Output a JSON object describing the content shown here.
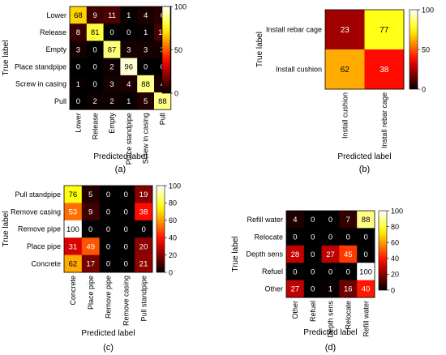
{
  "chart_data": [
    {
      "type": "heatmap",
      "panel_label": "(a)",
      "xlabel": "Predicted label",
      "ylabel": "True label",
      "rows": [
        "Lower",
        "Release",
        "Empty",
        "Place standpipe",
        "Screw in casing",
        "Pull"
      ],
      "cols": [
        "Lower",
        "Release",
        "Empty",
        "Place standpipe",
        "Screw in casing",
        "Pull"
      ],
      "values": [
        [
          68,
          9,
          11,
          1,
          4,
          6
        ],
        [
          8,
          81,
          0,
          0,
          1,
          10
        ],
        [
          3,
          0,
          87,
          3,
          3,
          3
        ],
        [
          0,
          0,
          2,
          96,
          0,
          0
        ],
        [
          1,
          0,
          3,
          4,
          88,
          4
        ],
        [
          0,
          2,
          2,
          1,
          5,
          88
        ]
      ],
      "colorbar": {
        "range": [
          0,
          100
        ],
        "ticks": [
          "0",
          "50",
          "100"
        ]
      },
      "colormap": "hot",
      "legend_position": "right"
    },
    {
      "type": "heatmap",
      "panel_label": "(b)",
      "xlabel": "Predicted label",
      "ylabel": "True label",
      "rows": [
        "Install rebar cage",
        "Install cushion"
      ],
      "cols": [
        "Install cushion",
        "Install rebar cage"
      ],
      "values": [
        [
          23,
          77
        ],
        [
          62,
          38
        ]
      ],
      "colorbar": {
        "range": [
          0,
          100
        ],
        "ticks": [
          "0",
          "50",
          "100"
        ]
      },
      "colormap": "hot",
      "legend_position": "right"
    },
    {
      "type": "heatmap",
      "panel_label": "(c)",
      "xlabel": "Predicted label",
      "ylabel": "True label",
      "rows": [
        "Pull standpipe",
        "Remove casing",
        "Remove pipe",
        "Place pipe",
        "Concrete"
      ],
      "cols": [
        "Concrete",
        "Place pipe",
        "Remove pipe",
        "Remove casing",
        "Pull standpipe"
      ],
      "values": [
        [
          76,
          5,
          0,
          0,
          19
        ],
        [
          53,
          9,
          0,
          0,
          38
        ],
        [
          100,
          0,
          0,
          0,
          0
        ],
        [
          31,
          49,
          0,
          0,
          20
        ],
        [
          62,
          17,
          0,
          0,
          21
        ]
      ],
      "colorbar": {
        "range": [
          0,
          100
        ],
        "ticks": [
          "0",
          "20",
          "40",
          "60",
          "80",
          "100"
        ]
      },
      "colormap": "hot",
      "legend_position": "right"
    },
    {
      "type": "heatmap",
      "panel_label": "(d)",
      "xlabel": "Predicted label",
      "ylabel": "True label",
      "rows": [
        "Refill water",
        "Relocate",
        "Depth sens",
        "Refuel",
        "Other"
      ],
      "cols": [
        "Other",
        "Refuel",
        "Depth sens",
        "Relocate",
        "Refill water"
      ],
      "values": [
        [
          4,
          0,
          0,
          7,
          88
        ],
        [
          0,
          0,
          0,
          0,
          0
        ],
        [
          28,
          0,
          27,
          45,
          0
        ],
        [
          0,
          0,
          0,
          0,
          100
        ],
        [
          27,
          0,
          1,
          16,
          40
        ]
      ],
      "colorbar": {
        "range": [
          0,
          100
        ],
        "ticks": [
          "0",
          "20",
          "40",
          "60",
          "80",
          "100"
        ]
      },
      "colormap": "hot",
      "legend_position": "right"
    }
  ]
}
